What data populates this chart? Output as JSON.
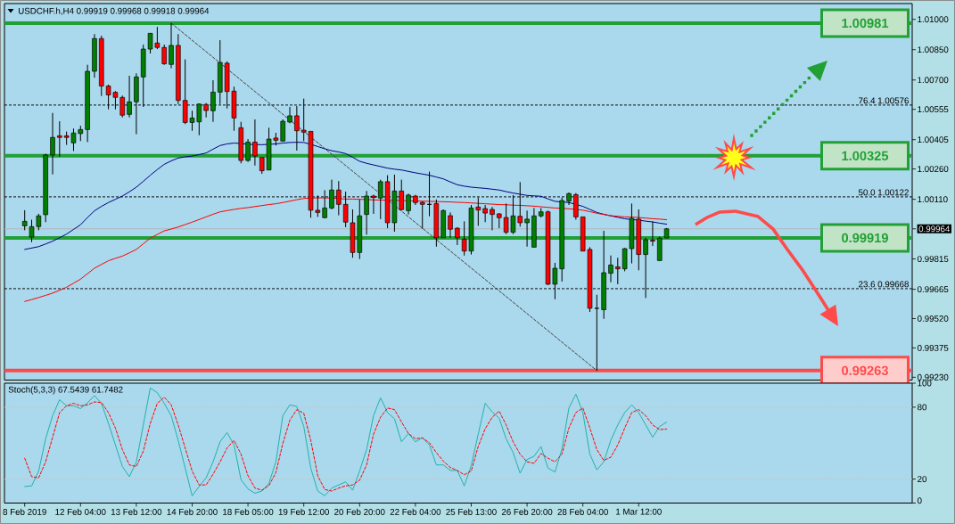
{
  "chart_data": [
    {
      "type": "candlestick",
      "title": "USDCHF.h,H4 0.99919 0.99968 0.99918 0.99964",
      "categories": [
        null,
        null,
        null,
        null,
        null,
        null,
        null,
        null,
        null,
        null,
        null,
        null,
        null,
        null,
        null,
        null,
        null,
        null,
        null,
        null,
        null,
        null,
        null,
        null,
        null,
        null,
        null,
        null,
        null,
        null,
        null,
        null,
        null,
        null,
        null,
        null,
        null,
        null,
        null,
        null,
        null,
        null,
        null,
        null,
        null,
        null,
        null,
        null,
        null,
        null,
        null,
        null,
        null,
        null,
        null,
        null,
        null,
        null,
        null,
        null,
        null,
        null,
        null,
        null,
        null,
        null,
        null,
        null,
        null,
        null,
        null,
        null,
        null,
        null,
        null,
        null,
        null,
        null,
        null,
        null,
        null,
        null,
        null,
        null,
        null,
        null,
        null,
        null,
        null,
        null,
        null,
        null,
        null
      ],
      "ohlc": [
        [
          0.99979,
          1.00056,
          0.99957,
          1.00001
        ],
        [
          0.99923,
          1.00009,
          0.99898,
          0.99975
        ],
        [
          0.99975,
          1.00038,
          0.99957,
          1.00028
        ],
        [
          1.00034,
          1.00335,
          0.99997,
          1.00329
        ],
        [
          1.00329,
          1.00537,
          1.00233,
          1.00416
        ],
        [
          1.00424,
          1.00496,
          1.00321,
          1.00416
        ],
        [
          1.00424,
          1.00445,
          1.00379,
          1.00416
        ],
        [
          1.00389,
          1.0046,
          1.00349,
          1.00438
        ],
        [
          1.00435,
          1.00474,
          1.00398,
          1.00455
        ],
        [
          1.00455,
          1.00775,
          1.00393,
          1.00743
        ],
        [
          1.00743,
          1.00927,
          1.00711,
          1.00905
        ],
        [
          1.00905,
          1.00919,
          1.00621,
          1.0067
        ],
        [
          1.0067,
          1.00677,
          1.00555,
          1.00626
        ],
        [
          1.00639,
          1.00645,
          1.00555,
          1.00614
        ],
        [
          1.00614,
          1.00623,
          1.00515,
          1.00526
        ],
        [
          1.0053,
          1.00721,
          1.00515,
          1.00592
        ],
        [
          1.00592,
          1.00733,
          1.00432,
          1.00715
        ],
        [
          1.00715,
          1.00875,
          1.00567,
          1.00853
        ],
        [
          1.00853,
          1.00931,
          1.00831,
          1.00931
        ],
        [
          1.00883,
          1.00963,
          1.00853,
          1.00861
        ],
        [
          1.00861,
          1.00875,
          1.00775,
          1.0078
        ],
        [
          1.00777,
          1.00981,
          1.00758,
          1.00871
        ],
        [
          1.00871,
          1.00927,
          1.00581,
          1.00599
        ],
        [
          1.00599,
          1.00802,
          1.00482,
          1.0049
        ],
        [
          1.0049,
          1.00548,
          1.00449,
          1.00512
        ],
        [
          1.00493,
          1.00584,
          1.00427,
          1.00581
        ],
        [
          1.00579,
          1.00586,
          1.00515,
          1.00549
        ],
        [
          1.00548,
          1.00699,
          1.00493,
          1.0064
        ],
        [
          1.0064,
          1.00897,
          1.00581,
          1.00787
        ],
        [
          1.00783,
          1.00792,
          1.00559,
          1.00643
        ],
        [
          1.00645,
          1.00667,
          1.00449,
          1.00512
        ],
        [
          1.00464,
          1.00493,
          1.00288,
          1.00302
        ],
        [
          1.00302,
          1.00408,
          1.00295,
          1.00393
        ],
        [
          1.00393,
          1.00505,
          1.00277,
          1.00324
        ],
        [
          1.00317,
          1.00317,
          1.00236,
          1.00251
        ],
        [
          1.00255,
          1.00464,
          1.00255,
          1.00408
        ],
        [
          1.00413,
          1.00439,
          1.00376,
          1.00402
        ],
        [
          1.00398,
          1.00505,
          1.00395,
          1.00496
        ],
        [
          1.00492,
          1.00567,
          1.00486,
          1.00523
        ],
        [
          1.00523,
          1.00571,
          1.00351,
          1.00449
        ],
        [
          1.00452,
          1.00608,
          1.00398,
          1.00442
        ],
        [
          1.00446,
          1.00446,
          1.00019,
          1.00056
        ],
        [
          1.00056,
          1.00129,
          1.00023,
          1.00045
        ],
        [
          1.00019,
          1.00155,
          1.00016,
          1.00067
        ],
        [
          1.00067,
          1.00207,
          1.0006,
          1.00156
        ],
        [
          1.00156,
          1.002,
          1.00031,
          1.00085
        ],
        [
          1.00085,
          1.00148,
          0.99972,
          0.99997
        ],
        [
          0.99994,
          1.0006,
          0.99821,
          0.99847
        ],
        [
          0.99847,
          1.00109,
          0.99815,
          1.00028
        ],
        [
          1.00035,
          1.00151,
          0.99935,
          1.00126
        ],
        [
          1.00126,
          1.00133,
          1.00038,
          1.00119
        ],
        [
          1.00116,
          1.00207,
          1.00012,
          1.00197
        ],
        [
          1.00197,
          1.00229,
          0.99967,
          0.99994
        ],
        [
          0.99994,
          1.00232,
          0.9995,
          1.00151
        ],
        [
          1.00151,
          1.00207,
          1.00056,
          1.00059
        ],
        [
          1.00054,
          1.00138,
          1.00035,
          1.00131
        ],
        [
          1.00126,
          1.00132,
          1.00082,
          1.00094
        ],
        [
          1.00095,
          1.001,
          0.99965,
          1.00085
        ],
        [
          1.00085,
          1.00247,
          1.00026,
          1.00085
        ],
        [
          1.00089,
          1.00109,
          0.99876,
          0.9992
        ],
        [
          0.9992,
          1.0006,
          0.9992,
          1.00054
        ],
        [
          1.00029,
          1.00045,
          0.9992,
          0.99962
        ],
        [
          0.99967,
          0.99972,
          0.99884,
          0.9992
        ],
        [
          0.99913,
          1.00001,
          0.99832,
          0.99854
        ],
        [
          0.99854,
          1.00082,
          0.99837,
          1.00067
        ],
        [
          1.00072,
          1.00119,
          0.99979,
          1.00057
        ],
        [
          1.00064,
          1.00082,
          0.99997,
          1.00042
        ],
        [
          1.0006,
          1.00072,
          0.99957,
          1.00035
        ],
        [
          1.00038,
          1.00042,
          0.99967,
          1.00019
        ],
        [
          1.0002,
          1.00089,
          0.99938,
          0.99947
        ],
        [
          0.99947,
          1.00131,
          0.99938,
          1.00028
        ],
        [
          1.00026,
          1.00195,
          0.99975,
          0.99994
        ],
        [
          0.99994,
          1.00054,
          0.99876,
          1.00012
        ],
        [
          0.99873,
          1.00067,
          0.99873,
          1.00028
        ],
        [
          1.00028,
          1.00067,
          1.0002,
          1.00048
        ],
        [
          1.00048,
          1.00054,
          0.99686,
          0.9969
        ],
        [
          0.9969,
          0.99796,
          0.99616,
          0.99769
        ],
        [
          0.99766,
          1.00119,
          0.99703,
          1.00104
        ],
        [
          1.00101,
          1.00144,
          1.00082,
          1.00138
        ],
        [
          1.00133,
          1.00141,
          1.00009,
          1.00023
        ],
        [
          1.00023,
          1.00023,
          0.99854,
          0.99854
        ],
        [
          0.99862,
          0.99873,
          0.99553,
          0.99571
        ],
        [
          0.99571,
          0.99638,
          0.99263,
          0.99571
        ],
        [
          0.99564,
          0.99954,
          0.99519,
          0.99747
        ],
        [
          0.99744,
          0.99832,
          0.997,
          0.99785
        ],
        [
          0.99776,
          0.99821,
          0.9969,
          0.99766
        ],
        [
          0.99766,
          0.99869,
          0.99754,
          0.99866
        ],
        [
          0.99866,
          1.00089,
          0.99793,
          1.00016
        ],
        [
          1.00012,
          1.0006,
          0.99759,
          0.99837
        ],
        [
          0.99837,
          0.9992,
          0.99622,
          0.9991
        ],
        [
          0.99908,
          1.00001,
          0.99879,
          0.99903
        ],
        [
          0.99807,
          0.99925,
          0.99807,
          0.99918
        ],
        [
          0.99919,
          0.99968,
          0.99918,
          0.99964
        ]
      ],
      "colors": [
        "#008000",
        "#008000",
        "#008000",
        "#008000",
        "#008000",
        "#ff0000",
        "#ff0000",
        "#008000",
        "#008000",
        "#008000",
        "#008000",
        "#ff0000",
        "#ff0000",
        "#ff0000",
        "#ff0000",
        "#008000",
        "#008000",
        "#008000",
        "#008000",
        "#ff0000",
        "#ff0000",
        "#008000",
        "#ff0000",
        "#ff0000",
        "#008000",
        "#008000",
        "#ff0000",
        "#008000",
        "#008000",
        "#ff0000",
        "#ff0000",
        "#ff0000",
        "#008000",
        "#ff0000",
        "#ff0000",
        "#008000",
        "#ff0000",
        "#008000",
        "#008000",
        "#ff0000",
        "#ff0000",
        "#ff0000",
        "#ff0000",
        "#008000",
        "#008000",
        "#ff0000",
        "#ff0000",
        "#ff0000",
        "#008000",
        "#008000",
        "#ff0000",
        "#008000",
        "#ff0000",
        "#008000",
        "#ff0000",
        "#008000",
        "#ff0000",
        "#ff0000",
        "#000000",
        "#ff0000",
        "#008000",
        "#ff0000",
        "#ff0000",
        "#ff0000",
        "#008000",
        "#ff0000",
        "#ff0000",
        "#ff0000",
        "#ff0000",
        "#ff0000",
        "#008000",
        "#ff0000",
        "#008000",
        "#008000",
        "#008000",
        "#ff0000",
        "#008000",
        "#008000",
        "#008000",
        "#ff0000",
        "#ff0000",
        "#ff0000",
        "#000000",
        "#008000",
        "#008000",
        "#ff0000",
        "#008000",
        "#008000",
        "#ff0000",
        "#008000",
        "#ff0000",
        "#008000",
        "#008000"
      ],
      "series": [
        {
          "type": "line",
          "color": "#000080",
          "values": [
            0.99862,
            0.99869,
            0.99876,
            0.99889,
            0.99903,
            0.9992,
            0.99938,
            0.99961,
            0.99984,
            1.0002,
            1.00053,
            1.00075,
            1.00094,
            1.0011,
            1.00126,
            1.00147,
            1.0017,
            1.00199,
            1.00229,
            1.00257,
            1.00283,
            1.003,
            1.00314,
            1.0032,
            1.00324,
            1.00331,
            1.00339,
            1.00358,
            1.00376,
            1.00384,
            1.00388,
            1.00386,
            1.00382,
            1.00381,
            1.0038,
            1.00382,
            1.00384,
            1.00388,
            1.00391,
            1.00392,
            1.00391,
            1.00382,
            1.00371,
            1.0036,
            1.0035,
            1.00344,
            1.00336,
            1.00318,
            1.00298,
            1.00288,
            1.0028,
            1.00272,
            1.00264,
            1.00259,
            1.00255,
            1.00248,
            1.00241,
            1.00235,
            1.00229,
            1.0022,
            1.00211,
            1.00196,
            1.00182,
            1.00175,
            1.0017,
            1.00167,
            1.00164,
            1.0016,
            1.00156,
            1.00148,
            1.00141,
            1.00135,
            1.00129,
            1.00127,
            1.00125,
            1.00112,
            1.001,
            1.00097,
            1.00094,
            1.00085,
            1.00075,
            1.0006,
            1.00045,
            1.00036,
            1.00028,
            1.00021,
            1.00014,
            1.0001,
            1.00007,
            1.00002,
            0.99998,
            0.99992,
            0.99987
          ]
        },
        {
          "type": "line",
          "color": "#ff0000",
          "values": [
            0.99605,
            0.99614,
            0.99624,
            0.99635,
            0.99646,
            0.9966,
            0.99675,
            0.99695,
            0.99715,
            0.99742,
            0.99769,
            0.99788,
            0.99806,
            0.99818,
            0.99829,
            0.99845,
            0.99862,
            0.9989,
            0.99918,
            0.99936,
            0.99954,
            0.99963,
            0.99973,
            0.99985,
            0.99997,
            1.0001,
            1.00023,
            1.00036,
            1.00048,
            1.00054,
            1.0006,
            1.00065,
            1.00069,
            1.00074,
            1.00079,
            1.00084,
            1.00088,
            1.00094,
            1.00101,
            1.00108,
            1.00114,
            1.00116,
            1.00117,
            1.00117,
            1.00116,
            1.00114,
            1.00111,
            1.00111,
            1.0011,
            1.00109,
            1.00107,
            1.00106,
            1.00105,
            1.00105,
            1.00104,
            1.00103,
            1.00102,
            1.00101,
            1.001,
            1.00099,
            1.00098,
            1.00097,
            1.00095,
            1.00094,
            1.00092,
            1.0009,
            1.00088,
            1.00086,
            1.00084,
            1.00083,
            1.00081,
            1.0008,
            1.00078,
            1.00076,
            1.00073,
            1.0007,
            1.00067,
            1.00065,
            1.00063,
            1.0006,
            1.00056,
            1.00049,
            1.00041,
            1.00035,
            1.00029,
            1.00026,
            1.00023,
            1.00022,
            1.0002,
            1.00017,
            1.00014,
            1.00012,
            1.00009
          ]
        },
        {
          "type": "line",
          "color": "#404040",
          "line_style": "dashed",
          "values": [
            null,
            null,
            null,
            null,
            null,
            null,
            null,
            null,
            null,
            null,
            null,
            null,
            null,
            null,
            null,
            null,
            null,
            null,
            null,
            null,
            null,
            1.00981,
            null,
            null,
            null,
            null,
            null,
            null,
            null,
            null,
            null,
            null,
            null,
            null,
            null,
            null,
            null,
            null,
            null,
            null,
            null,
            null,
            null,
            null,
            null,
            null,
            null,
            null,
            null,
            null,
            null,
            null,
            null,
            null,
            null,
            null,
            null,
            null,
            null,
            null,
            null,
            null,
            null,
            null,
            null,
            null,
            null,
            null,
            null,
            null,
            null,
            null,
            null,
            null,
            null,
            null,
            null,
            null,
            null,
            null,
            null,
            null,
            0.99263,
            null,
            null,
            null,
            null,
            null,
            null,
            null,
            null,
            null,
            null
          ]
        }
      ],
      "ylim": [
        0.99216,
        1.01078
      ],
      "yticks": [
        {
          "value": 1.01,
          "label": "1.01000"
        },
        {
          "value": 1.0085,
          "label": "1.00850"
        },
        {
          "value": 1.007,
          "label": "1.00700"
        },
        1.00555,
        1.00405,
        {
          "value": 1.0026,
          "label": "1.00260"
        },
        {
          "value": 1.0011,
          "label": "1.00110"
        },
        0.99964,
        0.99815,
        0.99665,
        {
          "value": 0.9952,
          "label": "0.99520"
        },
        0.99375,
        {
          "value": 0.9923,
          "label": "0.99230"
        }
      ],
      "ref_lines": [
        {
          "axis": "y",
          "value": 1.00981,
          "label": "1.00981",
          "color": "#22a035"
        },
        {
          "axis": "y",
          "value": 1.00325,
          "label": "1.00325",
          "color": "#22a035"
        },
        {
          "axis": "y",
          "value": 0.99919,
          "label": "0.99919",
          "color": "#22a035"
        },
        {
          "axis": "y",
          "value": 0.99263,
          "label": "0.99263",
          "color": "#ff4a4a"
        },
        {
          "axis": "y",
          "value": 1.00576,
          "label": "76.4 1.00576",
          "color": "#000000",
          "line_style": "dashed"
        },
        {
          "axis": "y",
          "value": 1.00122,
          "label": "50.0 1.00122",
          "color": "#000000",
          "line_style": "dashed"
        },
        {
          "axis": "y",
          "value": 0.99668,
          "label": "23.6 0.99668",
          "color": "#000000",
          "line_style": "dashed"
        },
        {
          "axis": "y",
          "value": 0.99964,
          "color": "#b4b4b4"
        }
      ]
    },
    {
      "type": "line",
      "title": "Stoch(5,3,3) 67.5439 61.7482",
      "categories": [
        "8 Feb 2019",
        null,
        null,
        null,
        null,
        null,
        null,
        null,
        "12 Feb 04:00",
        null,
        null,
        null,
        null,
        null,
        null,
        null,
        "13 Feb 12:00",
        null,
        null,
        null,
        null,
        null,
        null,
        null,
        "14 Feb 20:00",
        null,
        null,
        null,
        null,
        null,
        null,
        null,
        "18 Feb 05:00",
        null,
        null,
        null,
        null,
        null,
        null,
        null,
        "19 Feb 12:00",
        null,
        null,
        null,
        null,
        null,
        null,
        null,
        "20 Feb 20:00",
        null,
        null,
        null,
        null,
        null,
        null,
        null,
        "22 Feb 04:00",
        null,
        null,
        null,
        null,
        null,
        null,
        null,
        "25 Feb 13:00",
        null,
        null,
        null,
        null,
        null,
        null,
        null,
        "26 Feb 20:00",
        null,
        null,
        null,
        null,
        null,
        null,
        null,
        "28 Feb 04:00",
        null,
        null,
        null,
        null,
        null,
        null,
        null,
        "1 Mar 12:00",
        null,
        null,
        null,
        null
      ],
      "series": [
        {
          "color": "#20b2aa",
          "values": [
            13.8,
            14.3,
            26.7,
            53.6,
            72.9,
            86.2,
            81.1,
            81.1,
            78.8,
            83.7,
            89.6,
            83.2,
            66.5,
            48.5,
            30.5,
            22.0,
            34.4,
            65.2,
            96.0,
            92.1,
            83.2,
            72.9,
            52.3,
            29.2,
            6.1,
            13.8,
            21.0,
            34.4,
            51.1,
            58.8,
            48.5,
            19.5,
            11.8,
            8.2,
            10.0,
            16.4,
            34.4,
            72.9,
            81.9,
            80.6,
            63.9,
            29.2,
            10.0,
            6.1,
            12.5,
            15.1,
            17.7,
            10.7,
            26.7,
            44.6,
            72.9,
            87.8,
            75.5,
            70.3,
            51.1,
            58.0,
            51.1,
            54.4,
            48.5,
            31.8,
            31.8,
            27.2,
            27.2,
            14.3,
            31.3,
            57.5,
            83.2,
            76.0,
            70.8,
            53.6,
            42.1,
            24.9,
            36.4,
            39.0,
            47.2,
            29.2,
            25.9,
            45.1,
            79.3,
            90.9,
            75.5,
            40.8,
            27.7,
            34.4,
            52.3,
            65.2,
            75.5,
            81.9,
            75.5,
            65.2,
            54.9,
            63.9,
            67.5
          ]
        },
        {
          "color": "#ff0000",
          "line_style": "dashed",
          "values": [
            37.4,
            22.0,
            21.0,
            34.4,
            54.9,
            75.5,
            81.1,
            83.2,
            81.1,
            81.9,
            84.4,
            83.9,
            75.5,
            62.6,
            44.6,
            31.8,
            30.5,
            43.3,
            66.5,
            83.2,
            88.3,
            81.9,
            65.2,
            45.9,
            26.7,
            15.1,
            15.1,
            24.1,
            34.4,
            45.9,
            52.3,
            40.8,
            22.8,
            12.5,
            10.7,
            14.6,
            25.4,
            49.8,
            69.0,
            78.0,
            74.9,
            52.3,
            22.8,
            11.3,
            10.0,
            12.5,
            14.3,
            15.1,
            19.0,
            31.8,
            57.5,
            71.6,
            79.3,
            78.0,
            67.7,
            58.0,
            53.6,
            54.4,
            50.3,
            42.1,
            34.9,
            29.7,
            27.2,
            23.6,
            26.7,
            47.2,
            62.0,
            71.6,
            76.7,
            65.2,
            51.1,
            40.8,
            34.4,
            33.1,
            41.3,
            37.4,
            34.4,
            40.8,
            62.6,
            75.5,
            79.3,
            62.6,
            44.6,
            35.6,
            38.2,
            48.5,
            62.6,
            75.5,
            78.0,
            72.9,
            65.2,
            61.3,
            61.7
          ]
        }
      ],
      "ylim": [
        0,
        100
      ],
      "yticks": [
        0,
        20,
        80,
        100
      ],
      "ref_lines": [
        {
          "axis": "y",
          "value": 80,
          "color": "#c8c8c8",
          "line_style": "dashed"
        },
        {
          "axis": "y",
          "value": 20,
          "color": "#c8c8c8",
          "line_style": "dashed"
        }
      ]
    }
  ]
}
